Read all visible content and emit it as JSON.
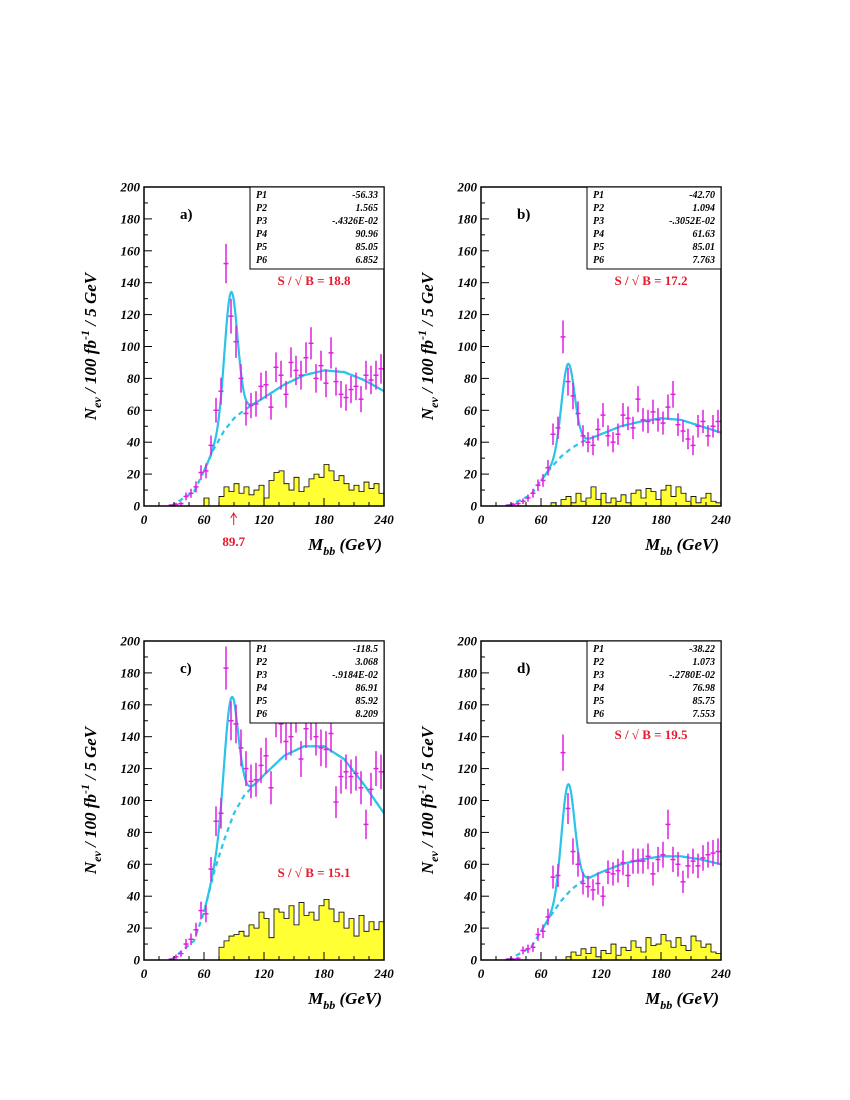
{
  "chart_data": [
    {
      "type": "histogram",
      "panel_label": "a)",
      "ylabel_main": "N",
      "ylabel_sub": "ev",
      "ylabel_rest": "/ 100 fb",
      "ylabel_sup": "-1",
      "ylabel_tail": "/ 5 GeV",
      "xlabel_main": "M",
      "xlabel_sub": "bb",
      "xlabel_tail": "(GeV)",
      "xlim": [
        0,
        240
      ],
      "ylim": [
        0,
        200
      ],
      "xticks": [
        "0",
        "60",
        "120",
        "180",
        "240"
      ],
      "yticks": [
        "0",
        "20",
        "40",
        "60",
        "80",
        "100",
        "120",
        "140",
        "160",
        "180",
        "200"
      ],
      "params": [
        {
          "name": "P1",
          "value": "-56.33"
        },
        {
          "name": "P2",
          "value": "1.565"
        },
        {
          "name": "P3",
          "value": "-.4326E-02"
        },
        {
          "name": "P4",
          "value": "90.96"
        },
        {
          "name": "P5",
          "value": "85.05"
        },
        {
          "name": "P6",
          "value": "6.852"
        }
      ],
      "sb_text": "S / √ B  = 18.8",
      "sb_pos": "upper",
      "marker": {
        "x": 89.7,
        "label": "89.7"
      },
      "points": [
        [
          27,
          0.5
        ],
        [
          32,
          1
        ],
        [
          37,
          1.5
        ],
        [
          42,
          6
        ],
        [
          47,
          8
        ],
        [
          52,
          12
        ],
        [
          57,
          21
        ],
        [
          62,
          22
        ],
        [
          67,
          38
        ],
        [
          72,
          60
        ],
        [
          77,
          72
        ],
        [
          82,
          152
        ],
        [
          87,
          119
        ],
        [
          92,
          103
        ],
        [
          97,
          80
        ],
        [
          102,
          58
        ],
        [
          107,
          63
        ],
        [
          112,
          64
        ],
        [
          117,
          75
        ],
        [
          122,
          76
        ],
        [
          127,
          62
        ],
        [
          132,
          87
        ],
        [
          137,
          82
        ],
        [
          142,
          70
        ],
        [
          147,
          90
        ],
        [
          152,
          85
        ],
        [
          157,
          82
        ],
        [
          162,
          93
        ],
        [
          167,
          102
        ],
        [
          172,
          80
        ],
        [
          177,
          88
        ],
        [
          182,
          77
        ],
        [
          187,
          96
        ],
        [
          192,
          78
        ],
        [
          197,
          70
        ],
        [
          202,
          68
        ],
        [
          207,
          73
        ],
        [
          212,
          75
        ],
        [
          217,
          67
        ],
        [
          222,
          82
        ],
        [
          227,
          79
        ],
        [
          232,
          82
        ],
        [
          237,
          86
        ]
      ],
      "fit": {
        "peak_x": 87,
        "peak_y": 134,
        "width": 6.5,
        "bg": [
          [
            27,
            0
          ],
          [
            50,
            9
          ],
          [
            60,
            22
          ],
          [
            70,
            36
          ],
          [
            80,
            47
          ],
          [
            90,
            55
          ],
          [
            100,
            60
          ],
          [
            120,
            68
          ],
          [
            140,
            76
          ],
          [
            160,
            82
          ],
          [
            180,
            85
          ],
          [
            200,
            84
          ],
          [
            220,
            79
          ],
          [
            240,
            72
          ]
        ]
      },
      "hist": [
        0,
        0,
        0,
        0,
        0,
        0,
        0,
        0,
        0,
        0,
        0,
        0,
        5,
        0,
        0,
        6,
        12,
        9,
        14,
        8,
        12,
        7,
        10,
        13,
        5,
        16,
        21,
        22,
        14,
        10,
        18,
        9,
        12,
        17,
        20,
        18,
        26,
        22,
        16,
        19,
        14,
        10,
        13,
        9,
        15,
        11,
        14,
        8
      ]
    },
    {
      "type": "histogram",
      "panel_label": "b)",
      "ylabel_main": "N",
      "ylabel_sub": "ev",
      "ylabel_rest": "/ 100 fb",
      "ylabel_sup": "-1",
      "ylabel_tail": "/ 5 GeV",
      "xlabel_main": "M",
      "xlabel_sub": "bb",
      "xlabel_tail": "(GeV)",
      "xlim": [
        0,
        240
      ],
      "ylim": [
        0,
        200
      ],
      "xticks": [
        "0",
        "60",
        "120",
        "180",
        "240"
      ],
      "yticks": [
        "0",
        "20",
        "40",
        "60",
        "80",
        "100",
        "120",
        "140",
        "160",
        "180",
        "200"
      ],
      "params": [
        {
          "name": "P1",
          "value": "-42.70"
        },
        {
          "name": "P2",
          "value": "1.094"
        },
        {
          "name": "P3",
          "value": "-.3052E-02"
        },
        {
          "name": "P4",
          "value": "61.63"
        },
        {
          "name": "P5",
          "value": "85.01"
        },
        {
          "name": "P6",
          "value": "7.763"
        }
      ],
      "sb_text": "S / √ B  = 17.2",
      "sb_pos": "upper",
      "points": [
        [
          27,
          0.5
        ],
        [
          32,
          1
        ],
        [
          37,
          1.5
        ],
        [
          42,
          3
        ],
        [
          47,
          5
        ],
        [
          52,
          8
        ],
        [
          57,
          13
        ],
        [
          62,
          16
        ],
        [
          67,
          24
        ],
        [
          72,
          45
        ],
        [
          77,
          49
        ],
        [
          82,
          106
        ],
        [
          87,
          78
        ],
        [
          92,
          69
        ],
        [
          97,
          58
        ],
        [
          102,
          44
        ],
        [
          107,
          40
        ],
        [
          112,
          38
        ],
        [
          117,
          48
        ],
        [
          122,
          57
        ],
        [
          127,
          44
        ],
        [
          132,
          40
        ],
        [
          137,
          45
        ],
        [
          142,
          57
        ],
        [
          147,
          55
        ],
        [
          152,
          49
        ],
        [
          157,
          67
        ],
        [
          162,
          54
        ],
        [
          167,
          53
        ],
        [
          172,
          59
        ],
        [
          177,
          54
        ],
        [
          182,
          52
        ],
        [
          187,
          62
        ],
        [
          192,
          70
        ],
        [
          197,
          51
        ],
        [
          202,
          47
        ],
        [
          207,
          42
        ],
        [
          212,
          38
        ],
        [
          217,
          50
        ],
        [
          222,
          53
        ],
        [
          227,
          44
        ],
        [
          232,
          50
        ],
        [
          237,
          53
        ]
      ],
      "fit": {
        "peak_x": 87,
        "peak_y": 89,
        "width": 6.5,
        "bg": [
          [
            27,
            0
          ],
          [
            50,
            7
          ],
          [
            60,
            16
          ],
          [
            70,
            24
          ],
          [
            80,
            31
          ],
          [
            90,
            36
          ],
          [
            100,
            40
          ],
          [
            120,
            45
          ],
          [
            140,
            50
          ],
          [
            160,
            53
          ],
          [
            180,
            55
          ],
          [
            200,
            54
          ],
          [
            220,
            50
          ],
          [
            240,
            46
          ]
        ]
      },
      "hist": [
        0,
        0,
        0,
        0,
        0,
        0,
        0,
        0,
        0,
        0,
        0,
        0,
        0,
        0,
        2,
        0,
        4,
        6,
        2,
        8,
        3,
        5,
        12,
        4,
        8,
        2,
        5,
        3,
        7,
        2,
        8,
        10,
        5,
        11,
        9,
        4,
        10,
        13,
        6,
        12,
        8,
        3,
        6,
        2,
        5,
        8,
        3,
        2
      ]
    },
    {
      "type": "histogram",
      "panel_label": "c)",
      "ylabel_main": "N",
      "ylabel_sub": "ev",
      "ylabel_rest": "/ 100 fb",
      "ylabel_sup": "-1",
      "ylabel_tail": "/ 5 GeV",
      "xlabel_main": "M",
      "xlabel_sub": "bb",
      "xlabel_tail": "(GeV)",
      "xlim": [
        0,
        240
      ],
      "ylim": [
        0,
        200
      ],
      "xticks": [
        "0",
        "60",
        "120",
        "180",
        "240"
      ],
      "yticks": [
        "0",
        "20",
        "40",
        "60",
        "80",
        "100",
        "120",
        "140",
        "160",
        "180",
        "200"
      ],
      "params": [
        {
          "name": "P1",
          "value": "-118.5"
        },
        {
          "name": "P2",
          "value": "3.068"
        },
        {
          "name": "P3",
          "value": "-.9184E-02"
        },
        {
          "name": "P4",
          "value": "86.91"
        },
        {
          "name": "P5",
          "value": "85.92"
        },
        {
          "name": "P6",
          "value": "8.209"
        }
      ],
      "sb_text": "S / √ B  = 15.1",
      "sb_pos": "lower",
      "points": [
        [
          27,
          0.5
        ],
        [
          32,
          2
        ],
        [
          37,
          4
        ],
        [
          42,
          10
        ],
        [
          47,
          13
        ],
        [
          52,
          19
        ],
        [
          57,
          31
        ],
        [
          62,
          29
        ],
        [
          67,
          57
        ],
        [
          72,
          87
        ],
        [
          77,
          92
        ],
        [
          82,
          183
        ],
        [
          87,
          150
        ],
        [
          92,
          148
        ],
        [
          97,
          133
        ],
        [
          102,
          120
        ],
        [
          107,
          112
        ],
        [
          112,
          113
        ],
        [
          117,
          122
        ],
        [
          122,
          128
        ],
        [
          127,
          108
        ],
        [
          132,
          152
        ],
        [
          137,
          148
        ],
        [
          142,
          137
        ],
        [
          147,
          140
        ],
        [
          152,
          155
        ],
        [
          157,
          126
        ],
        [
          162,
          145
        ],
        [
          167,
          150
        ],
        [
          172,
          140
        ],
        [
          177,
          133
        ],
        [
          182,
          132
        ],
        [
          187,
          142
        ],
        [
          192,
          99
        ],
        [
          197,
          115
        ],
        [
          202,
          118
        ],
        [
          207,
          115
        ],
        [
          212,
          117
        ],
        [
          217,
          108
        ],
        [
          222,
          85
        ],
        [
          227,
          107
        ],
        [
          232,
          120
        ],
        [
          237,
          118
        ]
      ],
      "fit": {
        "peak_x": 87,
        "peak_y": 164,
        "width": 7,
        "bg": [
          [
            27,
            0
          ],
          [
            50,
            12
          ],
          [
            60,
            30
          ],
          [
            70,
            55
          ],
          [
            80,
            75
          ],
          [
            90,
            92
          ],
          [
            100,
            103
          ],
          [
            120,
            116
          ],
          [
            140,
            128
          ],
          [
            160,
            134
          ],
          [
            180,
            134
          ],
          [
            200,
            126
          ],
          [
            220,
            110
          ],
          [
            240,
            92
          ]
        ]
      },
      "hist": [
        0,
        0,
        0,
        0,
        0,
        0,
        0,
        0,
        0,
        0,
        0,
        0,
        0,
        0,
        0,
        8,
        12,
        15,
        16,
        18,
        15,
        22,
        20,
        30,
        26,
        14,
        32,
        30,
        26,
        34,
        22,
        36,
        28,
        30,
        25,
        34,
        38,
        32,
        24,
        30,
        20,
        26,
        15,
        28,
        18,
        24,
        19,
        24
      ]
    },
    {
      "type": "histogram",
      "panel_label": "d)",
      "ylabel_main": "N",
      "ylabel_sub": "ev",
      "ylabel_rest": "/ 100 fb",
      "ylabel_sup": "-1",
      "ylabel_tail": "/ 5 GeV",
      "xlabel_main": "M",
      "xlabel_sub": "bb",
      "xlabel_tail": "(GeV)",
      "xlim": [
        0,
        240
      ],
      "ylim": [
        0,
        200
      ],
      "xticks": [
        "0",
        "60",
        "120",
        "180",
        "240"
      ],
      "yticks": [
        "0",
        "20",
        "40",
        "60",
        "80",
        "100",
        "120",
        "140",
        "160",
        "180",
        "200"
      ],
      "params": [
        {
          "name": "P1",
          "value": "-38.22"
        },
        {
          "name": "P2",
          "value": "1.073"
        },
        {
          "name": "P3",
          "value": "-.2780E-02"
        },
        {
          "name": "P4",
          "value": "76.98"
        },
        {
          "name": "P5",
          "value": "85.75"
        },
        {
          "name": "P6",
          "value": "7.553"
        }
      ],
      "sb_text": "S / √ B  = 19.5",
      "sb_pos": "upper",
      "points": [
        [
          27,
          0.5
        ],
        [
          32,
          0.5
        ],
        [
          37,
          1
        ],
        [
          42,
          6
        ],
        [
          47,
          7
        ],
        [
          52,
          8
        ],
        [
          57,
          16
        ],
        [
          62,
          18
        ],
        [
          67,
          27
        ],
        [
          72,
          52
        ],
        [
          77,
          53
        ],
        [
          82,
          130
        ],
        [
          87,
          95
        ],
        [
          92,
          68
        ],
        [
          97,
          60
        ],
        [
          102,
          48
        ],
        [
          107,
          46
        ],
        [
          112,
          44
        ],
        [
          117,
          48
        ],
        [
          122,
          40
        ],
        [
          127,
          55
        ],
        [
          132,
          54
        ],
        [
          137,
          56
        ],
        [
          142,
          61
        ],
        [
          147,
          53
        ],
        [
          152,
          62
        ],
        [
          157,
          62
        ],
        [
          162,
          62
        ],
        [
          167,
          65
        ],
        [
          172,
          54
        ],
        [
          177,
          63
        ],
        [
          182,
          66
        ],
        [
          187,
          85
        ],
        [
          192,
          63
        ],
        [
          197,
          60
        ],
        [
          202,
          49
        ],
        [
          207,
          59
        ],
        [
          212,
          62
        ],
        [
          217,
          59
        ],
        [
          222,
          64
        ],
        [
          227,
          66
        ],
        [
          232,
          67
        ],
        [
          237,
          68
        ]
      ],
      "fit": {
        "peak_x": 87,
        "peak_y": 110,
        "width": 6.5,
        "bg": [
          [
            27,
            0
          ],
          [
            50,
            8
          ],
          [
            60,
            18
          ],
          [
            70,
            28
          ],
          [
            80,
            37
          ],
          [
            90,
            44
          ],
          [
            100,
            49
          ],
          [
            120,
            55
          ],
          [
            140,
            60
          ],
          [
            160,
            63
          ],
          [
            180,
            65
          ],
          [
            200,
            65
          ],
          [
            220,
            63
          ],
          [
            240,
            60
          ]
        ]
      },
      "hist": [
        0,
        0,
        0,
        0,
        0,
        0,
        0,
        0,
        0,
        0,
        0,
        0,
        0,
        0,
        0,
        0,
        0,
        2,
        5,
        3,
        7,
        4,
        8,
        2,
        6,
        4,
        10,
        3,
        8,
        6,
        12,
        8,
        5,
        14,
        9,
        10,
        16,
        12,
        8,
        14,
        9,
        6,
        15,
        12,
        8,
        10,
        5,
        4
      ]
    }
  ]
}
